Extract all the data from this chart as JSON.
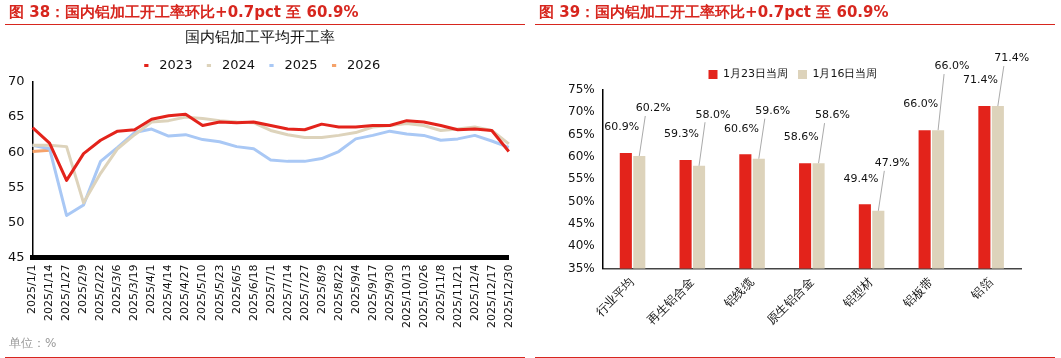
{
  "chart_data": [
    {
      "type": "line",
      "title": "图 38：国内铝加工开工率环比+0.7pct 至 60.9%",
      "subtitle": "国内铝加工平均开工率",
      "categories": [
        "2025/1/1",
        "2025/1/14",
        "2025/1/27",
        "2025/2/9",
        "2025/2/22",
        "2025/3/6",
        "2025/3/19",
        "2025/4/1",
        "2025/4/14",
        "2025/4/27",
        "2025/5/10",
        "2025/5/23",
        "2025/6/5",
        "2025/6/18",
        "2025/7/1",
        "2025/7/14",
        "2025/7/27",
        "2025/8/9",
        "2025/8/22",
        "2025/9/4",
        "2025/9/17",
        "2025/9/30",
        "2025/10/13",
        "2025/10/26",
        "2025/11/8",
        "2025/11/21",
        "2025/12/4",
        "2025/12/17",
        "2025/12/30"
      ],
      "series": [
        {
          "name": "2023",
          "color": "#e3231b",
          "values": [
            63.5,
            61.3,
            56,
            59.8,
            61.7,
            63,
            63.2,
            64.7,
            65.2,
            65.4,
            63.8,
            64.3,
            64.2,
            64.3,
            63.8,
            63.3,
            63.2,
            64,
            63.6,
            63.6,
            63.8,
            63.8,
            64.5,
            64.3,
            63.8,
            63.2,
            63.3,
            63.1,
            60.1
          ]
        },
        {
          "name": "2024",
          "color": "#ddd3bb",
          "values": [
            61,
            61,
            60.8,
            52.8,
            57,
            60.5,
            62.5,
            64.3,
            64.5,
            65,
            64.8,
            64.5,
            64.3,
            64.2,
            63.1,
            62.5,
            62.1,
            62.1,
            62.4,
            62.8,
            63.6,
            63.8,
            64.1,
            63.8,
            63.1,
            63.3,
            63.6,
            63.1,
            61.2
          ]
        },
        {
          "name": "2025",
          "color": "#a9c8f5",
          "values": [
            61,
            60.5,
            51,
            52.5,
            58.7,
            60.7,
            62.8,
            63.3,
            62.3,
            62.5,
            61.8,
            61.5,
            60.8,
            60.5,
            58.9,
            58.7,
            58.7,
            59.1,
            60.1,
            61.9,
            62.4,
            63,
            62.6,
            62.4,
            61.7,
            61.9,
            62.4,
            61.6,
            60.7
          ]
        },
        {
          "name": "2026",
          "color": "#f5a26a",
          "values": [
            60.1,
            60.3,
            null,
            null,
            null,
            null,
            null,
            null,
            null,
            null,
            null,
            null,
            null,
            null,
            null,
            null,
            null,
            null,
            null,
            null,
            null,
            null,
            null,
            null,
            null,
            null,
            null,
            null,
            null
          ]
        }
      ],
      "ylim": [
        45,
        70
      ],
      "yticks": [
        45,
        50,
        55,
        60,
        65,
        70
      ],
      "grid": false,
      "legend": "top",
      "marker": "none",
      "annotations": [
        "单位：%"
      ]
    },
    {
      "type": "bar",
      "title": "图 39：国内铝加工开工率环比+0.7pct 至 60.9%",
      "categories": [
        "行业平均",
        "再生铝合金",
        "铝线缆",
        "原生铝合金",
        "铝型材",
        "铝板带",
        "铝箔"
      ],
      "series": [
        {
          "name": "1月23日当周",
          "color": "#e3231b",
          "values": [
            60.9,
            59.3,
            60.6,
            58.6,
            49.4,
            66.0,
            71.4
          ],
          "value_labels": [
            "60.9%",
            "59.3%",
            "60.6%",
            "58.6%",
            "49.4%",
            "66.0%",
            "71.4%"
          ]
        },
        {
          "name": "1月16日当周",
          "color": "#ddd3bb",
          "values": [
            60.2,
            58.0,
            59.6,
            58.6,
            47.9,
            66.0,
            71.4
          ],
          "value_labels": [
            "60.2%",
            "58.0%",
            "59.6%",
            "58.6%",
            "47.9%",
            "66.0%",
            "71.4%"
          ]
        }
      ],
      "ylim": [
        35,
        75
      ],
      "yticks": [
        {
          "value": 35,
          "label": "35%"
        },
        {
          "value": 40,
          "label": "40%"
        },
        {
          "value": 45,
          "label": "45%"
        },
        {
          "value": 50,
          "label": "50%"
        },
        {
          "value": 55,
          "label": "55%"
        },
        {
          "value": 60,
          "label": "60%"
        },
        {
          "value": 65,
          "label": "65%"
        },
        {
          "value": 70,
          "label": "70%"
        },
        {
          "value": 75,
          "label": "75%"
        }
      ],
      "grid": false,
      "legend": "top"
    }
  ]
}
